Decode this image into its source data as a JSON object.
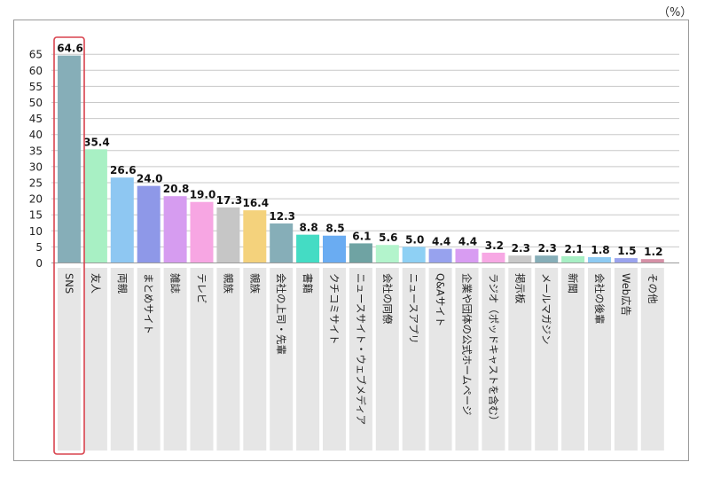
{
  "unit_label": "（%）",
  "colors": {
    "grid": "#c8c8c8",
    "label_bg": "#e6e6e6",
    "highlight_border": "#d9434e",
    "bars": [
      "#86aeb8",
      "#a8f0c4",
      "#8ec7f2",
      "#8e98e8",
      "#d69cf0",
      "#f7a6e3",
      "#c6c6c6",
      "#f4d27c",
      "#86aeb8",
      "#44dcc4",
      "#6aacf2",
      "#6fa3a3",
      "#b3f4cc",
      "#8ed0f4",
      "#97a2ee",
      "#d89cf2",
      "#f7a8e4",
      "#c9c9c9",
      "#86aeb8",
      "#a7efc4",
      "#8ecbf3",
      "#9aa3ee",
      "#d590a6"
    ]
  },
  "chart_data": {
    "type": "bar",
    "title": "",
    "xlabel": "",
    "ylabel": "",
    "ylim": [
      0,
      67
    ],
    "yticks": [
      0,
      5,
      10,
      15,
      20,
      25,
      30,
      35,
      40,
      45,
      50,
      55,
      60,
      65
    ],
    "grid": true,
    "highlight_index": 0,
    "categories": [
      "SNS",
      "友人",
      "両親",
      "まとめサイト",
      "雑誌",
      "テレビ",
      "親族",
      "親族",
      "会社の上司・先輩",
      "書籍",
      "クチコミサイト",
      "ニュースサイト・ウェブメディア",
      "会社の同僚",
      "ニュースアプリ",
      "Q&Aサイト",
      "企業や団体の公式ホームページ",
      "ラジオ（ポッドキャストを含む）",
      "掲示板",
      "メールマガジン",
      "新聞",
      "会社の後輩",
      "Web広告",
      "その他"
    ],
    "values": [
      64.6,
      35.4,
      26.6,
      24.0,
      20.8,
      19.0,
      17.3,
      16.4,
      12.3,
      8.8,
      8.5,
      6.1,
      5.6,
      5.0,
      4.4,
      4.4,
      3.2,
      2.3,
      2.3,
      2.1,
      1.8,
      1.5,
      1.2
    ],
    "value_labels": [
      "64.6",
      "35.4",
      "26.6",
      "24.0",
      "20.8",
      "19.0",
      "17.3",
      "16.4",
      "12.3",
      "8.8",
      "8.5",
      "6.1",
      "5.6",
      "5.0",
      "4.4",
      "4.4",
      "3.2",
      "2.3",
      "2.3",
      "2.1",
      "1.8",
      "1.5",
      "1.2"
    ]
  }
}
